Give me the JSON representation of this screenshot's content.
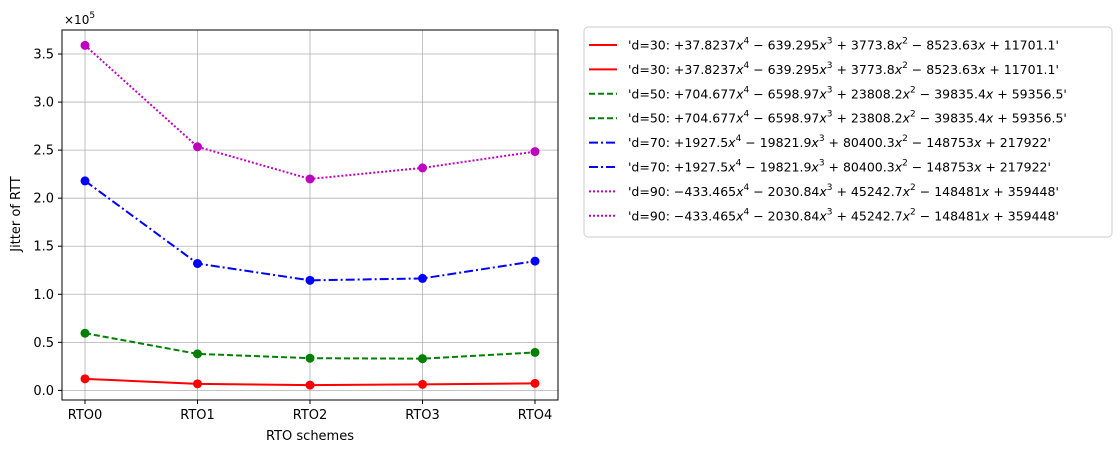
{
  "chart_data": {
    "type": "line",
    "xlabel": "RTO schemes",
    "ylabel": "Jitter of RTT",
    "y_multiplier": "×10",
    "y_multiplier_exp": "5",
    "categories": [
      "RTO0",
      "RTO1",
      "RTO2",
      "RTO3",
      "RTO4"
    ],
    "ylim": [
      -0.1,
      3.75
    ],
    "yticks": [
      0.0,
      0.5,
      1.0,
      1.5,
      2.0,
      2.5,
      3.0,
      3.5
    ],
    "ytick_labels": [
      "0.0",
      "0.5",
      "1.0",
      "1.5",
      "2.0",
      "2.5",
      "3.0",
      "3.5"
    ],
    "grid": true,
    "legend_position": "outside-right",
    "series": [
      {
        "legend": [
          "'d=30: +37.8237",
          "x",
          "4",
          " − 639.295",
          "x",
          "3",
          " + 3773.8",
          "x",
          "2",
          " − 8523.63",
          "x",
          " + 11701.1'"
        ],
        "color": "#ff0000",
        "linestyle": "solid",
        "values": [
          0.12,
          0.068,
          0.055,
          0.063,
          0.073
        ]
      },
      {
        "legend": [
          "'d=50: +704.677",
          "x",
          "4",
          " − 6598.97",
          "x",
          "3",
          " + 23808.2",
          "x",
          "2",
          " − 39835.4",
          "x",
          " + 59356.5'"
        ],
        "color": "#008000",
        "linestyle": "dashed",
        "values": [
          0.595,
          0.38,
          0.335,
          0.33,
          0.395
        ]
      },
      {
        "legend": [
          "'d=70: +1927.5",
          "x",
          "4",
          " − 19821.9",
          "x",
          "3",
          " + 80400.3",
          "x",
          "2",
          " − 148753",
          "x",
          " + 217922'"
        ],
        "color": "#0000ff",
        "linestyle": "dashdot",
        "values": [
          2.18,
          1.32,
          1.145,
          1.165,
          1.345
        ]
      },
      {
        "legend": [
          "'d=90: −433.465",
          "x",
          "4",
          " − 2030.84",
          "x",
          "3",
          " + 45242.7",
          "x",
          "2",
          " − 148481",
          "x",
          " + 359448'"
        ],
        "color": "#c000c0",
        "linestyle": "dotted",
        "values": [
          3.59,
          2.535,
          2.2,
          2.315,
          2.485
        ]
      }
    ]
  }
}
